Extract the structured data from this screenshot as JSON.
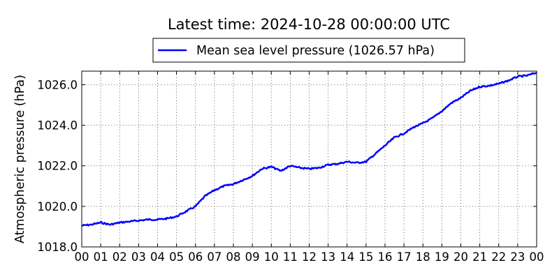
{
  "chart_data": {
    "type": "line",
    "title": "Latest time: 2024-10-28 00:00:00 UTC",
    "ylabel": "Atmospheric pressure (hPa)",
    "xlabel": "",
    "ylim": [
      1018.0,
      1026.67
    ],
    "xlim": [
      0,
      24
    ],
    "grid": true,
    "legend_position": "top-center-outside",
    "x_tick_labels": [
      "00",
      "01",
      "02",
      "03",
      "04",
      "05",
      "06",
      "07",
      "08",
      "09",
      "10",
      "11",
      "12",
      "13",
      "14",
      "15",
      "16",
      "17",
      "18",
      "19",
      "20",
      "21",
      "22",
      "23",
      "00"
    ],
    "y_tick_labels": [
      "1018.0",
      "1020.0",
      "1022.0",
      "1024.0",
      "1026.0"
    ],
    "y_ticks": [
      1018.0,
      1020.0,
      1022.0,
      1024.0,
      1026.0
    ],
    "series": [
      {
        "name": "Mean sea level pressure (1026.57 hPa)",
        "color": "#0000ff",
        "x": [
          0,
          0.5,
          1,
          1.5,
          2,
          2.5,
          3,
          3.5,
          4,
          4.5,
          5,
          5.5,
          6,
          6.5,
          7,
          7.5,
          8,
          8.5,
          9,
          9.5,
          10,
          10.5,
          11,
          11.5,
          12,
          12.5,
          13,
          13.5,
          14,
          14.5,
          15,
          15.5,
          16,
          16.5,
          17,
          17.5,
          18,
          18.5,
          19,
          19.5,
          20,
          20.5,
          21,
          21.5,
          22,
          22.5,
          23,
          23.5,
          24
        ],
        "values": [
          1019.05,
          1019.1,
          1019.2,
          1019.1,
          1019.2,
          1019.25,
          1019.3,
          1019.35,
          1019.35,
          1019.4,
          1019.5,
          1019.75,
          1020.0,
          1020.5,
          1020.8,
          1021.0,
          1021.1,
          1021.3,
          1021.5,
          1021.85,
          1021.95,
          1021.75,
          1022.0,
          1021.9,
          1021.85,
          1021.9,
          1022.05,
          1022.1,
          1022.2,
          1022.15,
          1022.2,
          1022.6,
          1023.0,
          1023.4,
          1023.6,
          1023.9,
          1024.1,
          1024.35,
          1024.7,
          1025.1,
          1025.35,
          1025.7,
          1025.9,
          1025.95,
          1026.05,
          1026.2,
          1026.4,
          1026.45,
          1026.6
        ]
      }
    ]
  }
}
